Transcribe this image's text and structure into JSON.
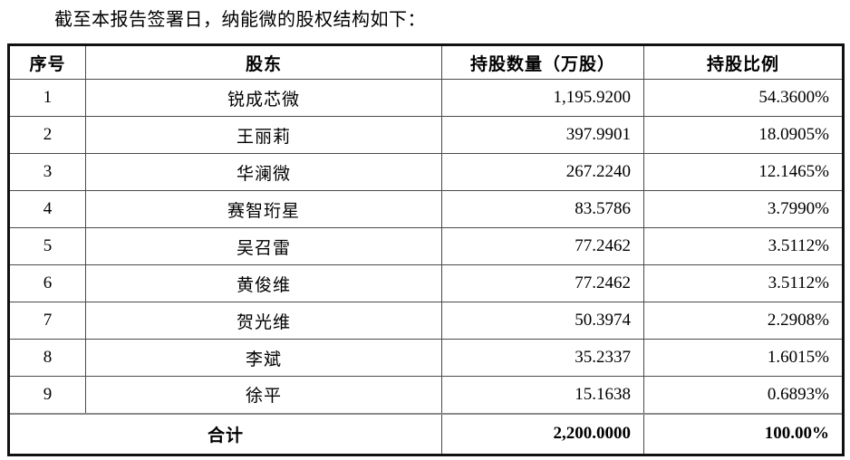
{
  "page": {
    "intro_text": "截至本报告签署日，纳能微的股权结构如下："
  },
  "table": {
    "headers": [
      "序号",
      "股东",
      "持股数量（万股）",
      "持股比例"
    ],
    "rows": [
      {
        "no": "1",
        "shareholder": "锐成芯微",
        "shares": "1,195.9200",
        "ratio": "54.3600%"
      },
      {
        "no": "2",
        "shareholder": "王丽莉",
        "shares": "397.9901",
        "ratio": "18.0905%"
      },
      {
        "no": "3",
        "shareholder": "华澜微",
        "shares": "267.2240",
        "ratio": "12.1465%"
      },
      {
        "no": "4",
        "shareholder": "赛智珩星",
        "shares": "83.5786",
        "ratio": "3.7990%"
      },
      {
        "no": "5",
        "shareholder": "吴召雷",
        "shares": "77.2462",
        "ratio": "3.5112%"
      },
      {
        "no": "6",
        "shareholder": "黄俊维",
        "shares": "77.2462",
        "ratio": "3.5112%"
      },
      {
        "no": "7",
        "shareholder": "贺光维",
        "shares": "50.3974",
        "ratio": "2.2908%"
      },
      {
        "no": "8",
        "shareholder": "李斌",
        "shares": "35.2337",
        "ratio": "1.6015%"
      },
      {
        "no": "9",
        "shareholder": "徐平",
        "shares": "15.1638",
        "ratio": "0.6893%"
      }
    ],
    "total": {
      "label": "合计",
      "shares": "2,200.0000",
      "ratio": "100.00%"
    }
  }
}
